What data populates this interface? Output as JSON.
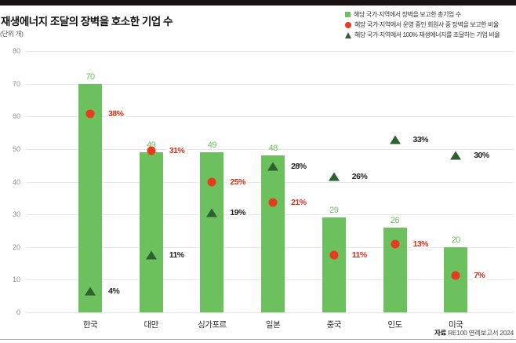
{
  "title": "재생에너지 조달의 장벽을 호소한 기업 수",
  "unit_label": "(단위 개)",
  "source": {
    "prefix": "자료",
    "text": "RE100 연례보고서 2024"
  },
  "legend": [
    {
      "marker": "square-icon",
      "label": "해당 국가·지역에서 장벽을 보고한 총기업 수"
    },
    {
      "marker": "circle-icon",
      "label": "해당 국가·지역에서 운영 중인 회원사 중 장벽을 보고한 비율"
    },
    {
      "marker": "triangle-icon",
      "label": "해당 국가·지역에서 100% 재생에너지를 조달하는 기업 비율"
    }
  ],
  "colors": {
    "bar": "#6cc05e",
    "bar_value_label": "#6cc05e",
    "dot": "#e73b1e",
    "dot_label": "#d3301a",
    "triangle": "#2d6130",
    "triangle_label": "#222222",
    "gridline": "#e7e7e7",
    "axis_label": "#8e8e8e",
    "top_strip": "#181112"
  },
  "chart_data": {
    "type": "bar",
    "title": "재생에너지 조달의 장벽을 호소한 기업 수",
    "unit": "개",
    "categories": [
      "한국",
      "대만",
      "싱가포르",
      "일본",
      "중국",
      "인도",
      "미국"
    ],
    "series": [
      {
        "name": "해당 국가·지역에서 장벽을 보고한 총기업 수",
        "type": "bar",
        "values": [
          70,
          49,
          49,
          48,
          29,
          26,
          20
        ]
      },
      {
        "name": "해당 국가·지역에서 운영 중인 회원사 중 장벽을 보고한 비율",
        "type": "point-circle",
        "values_pct": [
          38,
          31,
          25,
          21,
          11,
          13,
          7
        ],
        "labels": [
          "38%",
          "31%",
          "25%",
          "21%",
          "11%",
          "13%",
          "7%"
        ]
      },
      {
        "name": "해당 국가·지역에서 100% 재생에너지를 조달하는 기업 비율",
        "type": "point-triangle",
        "values_pct": [
          4,
          11,
          19,
          28,
          26,
          33,
          30
        ],
        "labels": [
          "4%",
          "11%",
          "19%",
          "28%",
          "26%",
          "33%",
          "30%"
        ]
      }
    ],
    "ylim": [
      0,
      80
    ],
    "ytick_step": 10,
    "yticks": [
      0,
      10,
      20,
      30,
      40,
      50,
      60,
      70,
      80
    ],
    "pct_to_left_axis_scale": 1.6,
    "grid": true,
    "legend_position": "top-right"
  }
}
